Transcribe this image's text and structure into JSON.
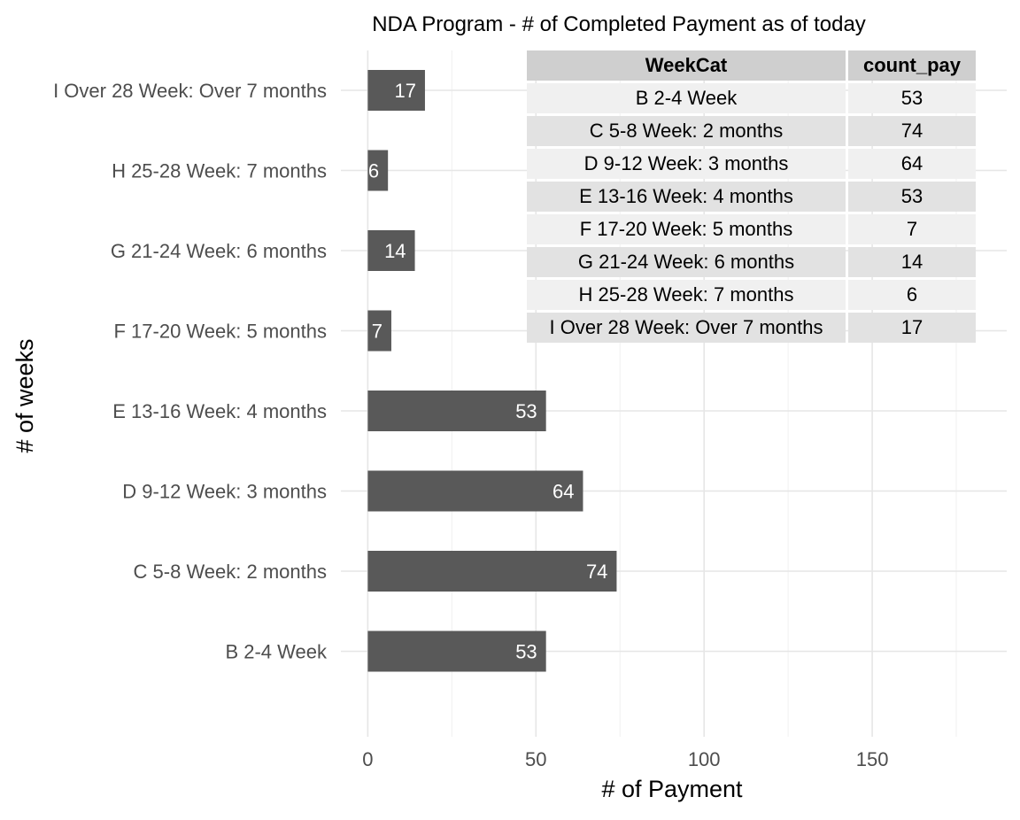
{
  "chart_data": {
    "type": "bar",
    "orientation": "horizontal",
    "title": "NDA Program - # of Completed Payment as of today",
    "xlabel": "# of Payment",
    "ylabel": "# of weeks",
    "categories": [
      "B 2-4 Week",
      "C 5-8 Week: 2 months",
      "D 9-12 Week: 3 months",
      "E 13-16 Week: 4 months",
      "F 17-20 Week: 5 months",
      "G 21-24 Week: 6 months",
      "H 25-28 Week: 7 months",
      "I Over 28 Week: Over 7 months"
    ],
    "values": [
      53,
      74,
      64,
      53,
      7,
      14,
      6,
      17
    ],
    "data_labels": [
      "53",
      "74",
      "64",
      "53",
      "7",
      "14",
      "6",
      "17"
    ],
    "xlim": [
      -8,
      190
    ],
    "xticks": [
      0,
      50,
      100,
      150
    ],
    "xtick_labels": [
      "0",
      "50",
      "100",
      "150"
    ],
    "grid": true,
    "bar_color": "#595959",
    "label_color": "#ffffff"
  },
  "table": {
    "headers": [
      "WeekCat",
      "count_pay"
    ],
    "rows": [
      [
        "B 2-4 Week",
        "53"
      ],
      [
        "C 5-8 Week: 2 months",
        "74"
      ],
      [
        "D 9-12 Week: 3 months",
        "64"
      ],
      [
        "E 13-16 Week: 4 months",
        "53"
      ],
      [
        "F 17-20 Week: 5 months",
        "7"
      ],
      [
        "G 21-24 Week: 6 months",
        "14"
      ],
      [
        "H 25-28 Week: 7 months",
        "6"
      ],
      [
        "I Over 28 Week: Over 7 months",
        "17"
      ]
    ]
  }
}
